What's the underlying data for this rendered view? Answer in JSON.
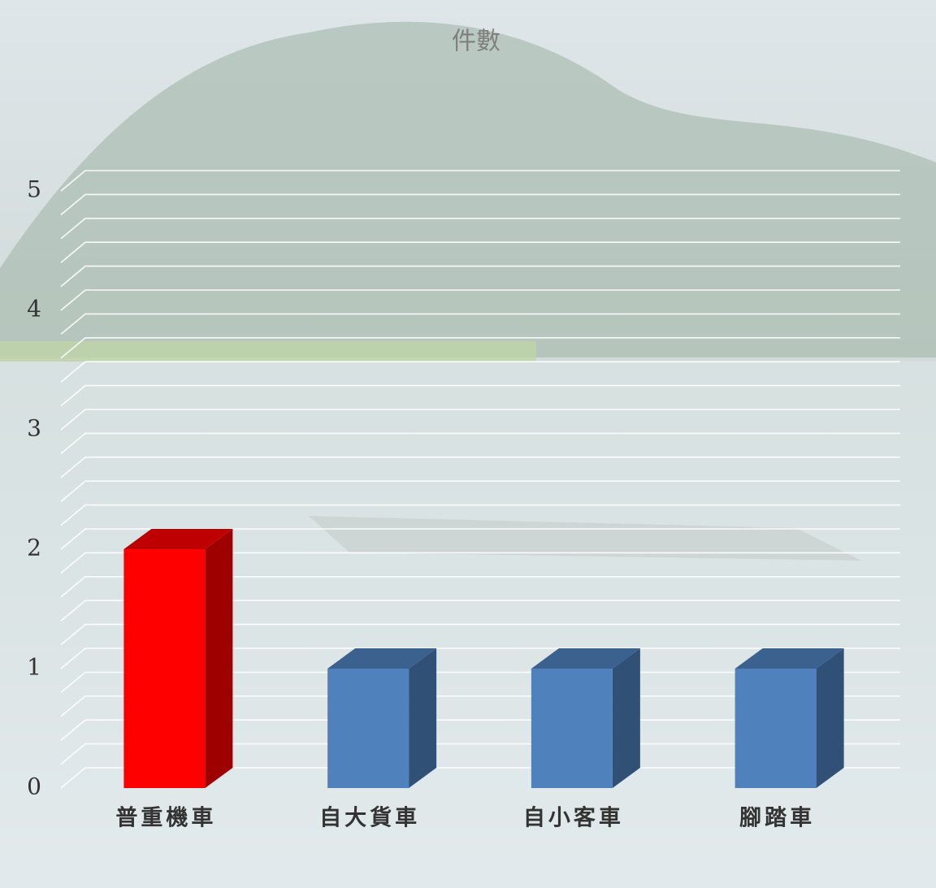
{
  "chart_data": {
    "type": "bar3d",
    "title": "件數",
    "categories": [
      "普重機車",
      "自大貨車",
      "自小客車",
      "腳踏車"
    ],
    "values": [
      2,
      1,
      1,
      1
    ],
    "colors": [
      "#ff0000",
      "#4f81bd",
      "#4f81bd",
      "#4f81bd"
    ],
    "ylim": [
      0,
      5
    ],
    "yticks": [
      0,
      1,
      2,
      3,
      4,
      5
    ],
    "minor_yticks": [
      0.2,
      0.4,
      0.6,
      0.8,
      1.2,
      1.4,
      1.6,
      1.8,
      2.2,
      2.4,
      2.6,
      2.8,
      3.2,
      3.4,
      3.6,
      3.8,
      4.2,
      4.4,
      4.6,
      4.8
    ],
    "grid": true
  }
}
